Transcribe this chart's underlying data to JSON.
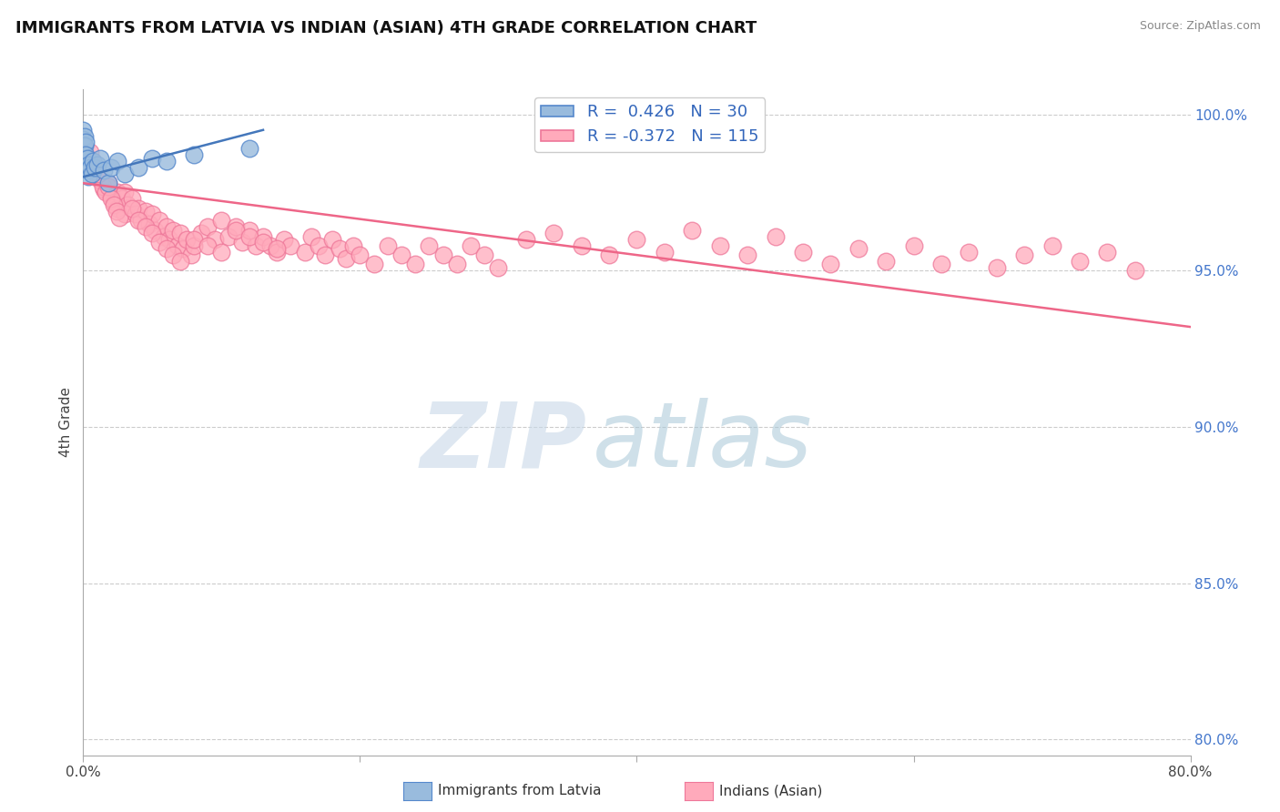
{
  "title": "IMMIGRANTS FROM LATVIA VS INDIAN (ASIAN) 4TH GRADE CORRELATION CHART",
  "source_text": "Source: ZipAtlas.com",
  "ylabel": "4th Grade",
  "legend_label1": "Immigrants from Latvia",
  "legend_label2": "Indians (Asian)",
  "r1": 0.426,
  "n1": 30,
  "r2": -0.372,
  "n2": 115,
  "blue_color": "#99BBDD",
  "pink_color": "#FFAABB",
  "blue_edge_color": "#5588CC",
  "pink_edge_color": "#EE7799",
  "blue_line_color": "#4477BB",
  "pink_line_color": "#EE6688",
  "watermark_zip": "ZIP",
  "watermark_atlas": "atlas",
  "watermark_color_zip": "#C8D8E8",
  "watermark_color_atlas": "#A8C8D8",
  "bg_color": "#FFFFFF",
  "title_fontsize": 13,
  "xlim": [
    0.0,
    0.8
  ],
  "ylim": [
    0.795,
    1.008
  ],
  "y_ticks": [
    0.8,
    0.85,
    0.9,
    0.95,
    1.0
  ],
  "blue_x": [
    0.0,
    0.0,
    0.0,
    0.001,
    0.001,
    0.001,
    0.001,
    0.002,
    0.002,
    0.002,
    0.003,
    0.003,
    0.004,
    0.004,
    0.005,
    0.006,
    0.007,
    0.008,
    0.01,
    0.012,
    0.015,
    0.018,
    0.02,
    0.025,
    0.03,
    0.04,
    0.05,
    0.06,
    0.08,
    0.12
  ],
  "blue_y": [
    0.995,
    0.992,
    0.99,
    0.993,
    0.99,
    0.987,
    0.984,
    0.991,
    0.987,
    0.983,
    0.986,
    0.982,
    0.984,
    0.98,
    0.983,
    0.981,
    0.985,
    0.983,
    0.984,
    0.986,
    0.982,
    0.978,
    0.983,
    0.985,
    0.981,
    0.983,
    0.986,
    0.985,
    0.987,
    0.989
  ],
  "blue_line_x": [
    0.0,
    0.13
  ],
  "blue_line_y": [
    0.98,
    0.995
  ],
  "pink_line_x": [
    0.0,
    0.8
  ],
  "pink_line_y": [
    0.978,
    0.932
  ],
  "pink_x": [
    0.01,
    0.015,
    0.018,
    0.02,
    0.022,
    0.025,
    0.025,
    0.028,
    0.03,
    0.03,
    0.032,
    0.035,
    0.038,
    0.04,
    0.042,
    0.045,
    0.048,
    0.05,
    0.052,
    0.055,
    0.058,
    0.06,
    0.062,
    0.065,
    0.068,
    0.07,
    0.072,
    0.075,
    0.078,
    0.08,
    0.085,
    0.09,
    0.095,
    0.1,
    0.105,
    0.11,
    0.115,
    0.12,
    0.125,
    0.13,
    0.008,
    0.01,
    0.012,
    0.014,
    0.016,
    0.018,
    0.02,
    0.022,
    0.024,
    0.026,
    0.135,
    0.14,
    0.145,
    0.15,
    0.16,
    0.165,
    0.17,
    0.175,
    0.18,
    0.185,
    0.19,
    0.195,
    0.2,
    0.21,
    0.22,
    0.23,
    0.24,
    0.25,
    0.26,
    0.27,
    0.28,
    0.29,
    0.3,
    0.32,
    0.34,
    0.36,
    0.38,
    0.4,
    0.42,
    0.44,
    0.46,
    0.48,
    0.5,
    0.52,
    0.54,
    0.56,
    0.58,
    0.6,
    0.62,
    0.64,
    0.66,
    0.68,
    0.7,
    0.72,
    0.74,
    0.76,
    0.005,
    0.007,
    0.009,
    0.011,
    0.035,
    0.04,
    0.045,
    0.05,
    0.055,
    0.06,
    0.065,
    0.07,
    0.08,
    0.09,
    0.1,
    0.11,
    0.12,
    0.13,
    0.14
  ],
  "pink_y": [
    0.98,
    0.976,
    0.978,
    0.974,
    0.972,
    0.975,
    0.97,
    0.973,
    0.975,
    0.968,
    0.971,
    0.973,
    0.968,
    0.97,
    0.966,
    0.969,
    0.965,
    0.968,
    0.963,
    0.966,
    0.961,
    0.964,
    0.96,
    0.963,
    0.958,
    0.962,
    0.957,
    0.96,
    0.955,
    0.958,
    0.962,
    0.964,
    0.96,
    0.966,
    0.961,
    0.964,
    0.959,
    0.963,
    0.958,
    0.961,
    0.984,
    0.982,
    0.979,
    0.977,
    0.975,
    0.977,
    0.973,
    0.971,
    0.969,
    0.967,
    0.958,
    0.956,
    0.96,
    0.958,
    0.956,
    0.961,
    0.958,
    0.955,
    0.96,
    0.957,
    0.954,
    0.958,
    0.955,
    0.952,
    0.958,
    0.955,
    0.952,
    0.958,
    0.955,
    0.952,
    0.958,
    0.955,
    0.951,
    0.96,
    0.962,
    0.958,
    0.955,
    0.96,
    0.956,
    0.963,
    0.958,
    0.955,
    0.961,
    0.956,
    0.952,
    0.957,
    0.953,
    0.958,
    0.952,
    0.956,
    0.951,
    0.955,
    0.958,
    0.953,
    0.956,
    0.95,
    0.988,
    0.985,
    0.983,
    0.981,
    0.97,
    0.966,
    0.964,
    0.962,
    0.959,
    0.957,
    0.955,
    0.953,
    0.96,
    0.958,
    0.956,
    0.963,
    0.961,
    0.959,
    0.957
  ]
}
